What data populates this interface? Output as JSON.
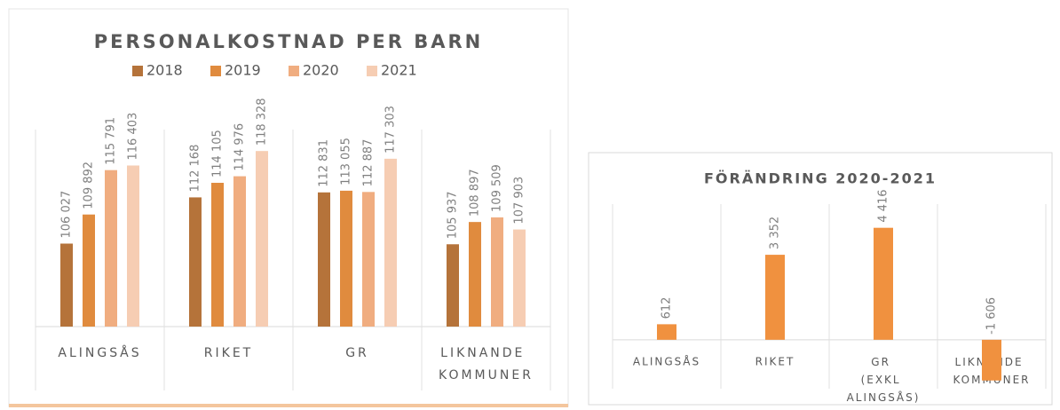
{
  "chart_data": [
    {
      "type": "bar",
      "title": "PERSONALKOSTNAD PER BARN",
      "categories": [
        "ALINGSÅS",
        "RIKET",
        "GR",
        "LIKNANDE KOMMUNER"
      ],
      "series": [
        {
          "name": "2018",
          "color": "#b5733a",
          "values": [
            106027,
            112168,
            112831,
            105937
          ],
          "value_labels": [
            "106 027",
            "112 168",
            "112 831",
            "105 937"
          ]
        },
        {
          "name": "2019",
          "color": "#e08b3e",
          "values": [
            109892,
            114105,
            113055,
            108897
          ],
          "value_labels": [
            "109 892",
            "114 105",
            "113 055",
            "108 897"
          ]
        },
        {
          "name": "2020",
          "color": "#f0ad80",
          "values": [
            115791,
            114976,
            112887,
            109509
          ],
          "value_labels": [
            "115 791",
            "114 976",
            "112 887",
            "109 509"
          ]
        },
        {
          "name": "2021",
          "color": "#f6cdb3",
          "values": [
            116403,
            118328,
            117303,
            107903
          ],
          "value_labels": [
            "116 403",
            "118 328",
            "117 303",
            "107 903"
          ]
        }
      ],
      "ylim": [
        95000,
        120000
      ]
    },
    {
      "type": "bar",
      "title": "FÖRÄNDRING 2020-2021",
      "categories": [
        "ALINGSÅS",
        "RIKET",
        "GR (EXKL ALINGSÅS)",
        "LIKNANDE KOMMUNER"
      ],
      "series": [
        {
          "color": "#f0913f",
          "values": [
            612,
            3352,
            4416,
            -1606
          ],
          "value_labels": [
            "612",
            "3 352",
            "4 416",
            "-1 606"
          ]
        }
      ],
      "ylim": [
        -2000,
        5000
      ]
    }
  ]
}
